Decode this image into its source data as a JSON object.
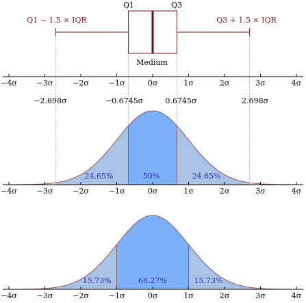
{
  "boxplot": {
    "q1_label": "Q1",
    "q3_label": "Q3",
    "lower_whisker_label": "Q1 − 1.5 × IQR",
    "upper_whisker_label": "Q3 + 1.5 × IQR",
    "median_label": "Medium",
    "q1": -0.6745,
    "median": 0,
    "q3": 0.6745,
    "lower_whisker": -2.698,
    "upper_whisker": 2.698
  },
  "reference_labels": [
    "−2.698σ",
    "−0.6745σ",
    "0.6745σ",
    "2.698σ"
  ],
  "axis_ticks": [
    "−4σ",
    "−3σ",
    "−2σ",
    "−1σ",
    "0σ",
    "1σ",
    "2σ",
    "3σ",
    "4σ"
  ],
  "chart_data": [
    {
      "type": "area",
      "x_range": [
        -4,
        4
      ],
      "curve": "standard normal pdf",
      "regions": [
        {
          "from": -2.698,
          "to": -0.6745,
          "label": "24.65%"
        },
        {
          "from": -0.6745,
          "to": 0.6745,
          "label": "50%"
        },
        {
          "from": 0.6745,
          "to": 2.698,
          "label": "24.65%"
        }
      ]
    },
    {
      "type": "area",
      "x_range": [
        -4,
        4
      ],
      "curve": "standard normal pdf",
      "regions": [
        {
          "from": -4,
          "to": -1,
          "label": "15.73%"
        },
        {
          "from": -1,
          "to": 1,
          "label": "68.27%"
        },
        {
          "from": 1,
          "to": 4,
          "label": "15.73%"
        }
      ]
    }
  ],
  "colors": {
    "outline": "#7a1a1a",
    "median": "#6b0f0f",
    "outer_fill": "#aac2e6",
    "inner_fill": "#7db0fa",
    "axis": "#000000",
    "guide": "#888888",
    "region_text": "#2b2bb8"
  }
}
